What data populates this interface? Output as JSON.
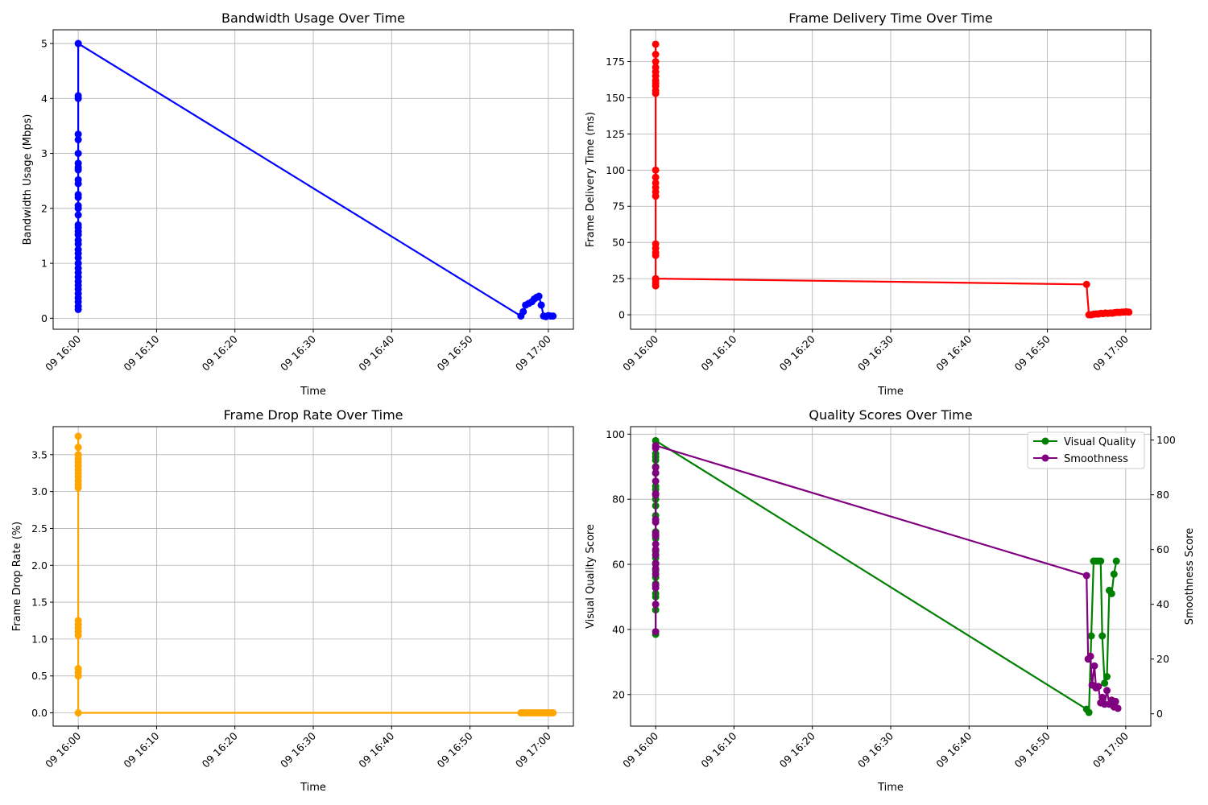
{
  "chart_data": [
    {
      "type": "line",
      "title": "Bandwidth Usage Over Time",
      "xlabel": "Time",
      "ylabel": "Bandwidth Usage (Mbps)",
      "x_ticks": [
        "09 16:00",
        "09 16:10",
        "09 16:20",
        "09 16:30",
        "09 16:40",
        "09 16:50",
        "09 17:00"
      ],
      "y_ticks": [
        0,
        1,
        2,
        3,
        4,
        5
      ],
      "ylim": [
        -0.2,
        5.25
      ],
      "xlim_minutes": [
        -3.2,
        63.2
      ],
      "grid": true,
      "series": [
        {
          "color": "#0000ff",
          "points": [
            [
              0,
              0.16
            ],
            [
              0,
              0.22
            ],
            [
              0,
              0.3
            ],
            [
              0,
              0.37
            ],
            [
              0,
              0.45
            ],
            [
              0,
              0.53
            ],
            [
              0,
              0.6
            ],
            [
              0,
              0.67
            ],
            [
              0,
              0.75
            ],
            [
              0,
              0.83
            ],
            [
              0,
              0.91
            ],
            [
              0,
              1.0
            ],
            [
              0,
              1.1
            ],
            [
              0,
              1.18
            ],
            [
              0,
              1.25
            ],
            [
              0,
              1.35
            ],
            [
              0,
              1.42
            ],
            [
              0,
              1.52
            ],
            [
              0,
              1.58
            ],
            [
              0,
              1.65
            ],
            [
              0,
              1.7
            ],
            [
              0,
              1.88
            ],
            [
              0,
              2.0
            ],
            [
              0,
              2.05
            ],
            [
              0,
              2.2
            ],
            [
              0,
              2.25
            ],
            [
              0,
              2.45
            ],
            [
              0,
              2.52
            ],
            [
              0,
              2.7
            ],
            [
              0,
              2.75
            ],
            [
              0,
              2.82
            ],
            [
              0,
              3.0
            ],
            [
              0,
              3.25
            ],
            [
              0,
              3.35
            ],
            [
              0,
              4.0
            ],
            [
              0,
              4.05
            ],
            [
              0,
              5.0
            ],
            [
              56.5,
              0.04
            ],
            [
              56.8,
              0.12
            ],
            [
              57.1,
              0.24
            ],
            [
              57.5,
              0.27
            ],
            [
              57.9,
              0.3
            ],
            [
              58.2,
              0.35
            ],
            [
              58.5,
              0.38
            ],
            [
              58.8,
              0.4
            ],
            [
              59.1,
              0.24
            ],
            [
              59.4,
              0.04
            ],
            [
              59.7,
              0.03
            ],
            [
              60.0,
              0.05
            ],
            [
              60.3,
              0.04
            ],
            [
              60.6,
              0.04
            ]
          ]
        }
      ]
    },
    {
      "type": "line",
      "title": "Frame Delivery Time Over Time",
      "xlabel": "Time",
      "ylabel": "Frame Delivery Time (ms)",
      "x_ticks": [
        "09 16:00",
        "09 16:10",
        "09 16:20",
        "09 16:30",
        "09 16:40",
        "09 16:50",
        "09 17:00"
      ],
      "y_ticks": [
        0,
        25,
        50,
        75,
        100,
        125,
        150,
        175
      ],
      "ylim": [
        -10,
        197
      ],
      "xlim_minutes": [
        -3.2,
        63.2
      ],
      "grid": true,
      "series": [
        {
          "color": "#ff0000",
          "points": [
            [
              0,
              187
            ],
            [
              0,
              180
            ],
            [
              0,
              175
            ],
            [
              0,
              171
            ],
            [
              0,
              168
            ],
            [
              0,
              165
            ],
            [
              0,
              162
            ],
            [
              0,
              160
            ],
            [
              0,
              158
            ],
            [
              0,
              155
            ],
            [
              0,
              153
            ],
            [
              0,
              100
            ],
            [
              0,
              95
            ],
            [
              0,
              91
            ],
            [
              0,
              88
            ],
            [
              0,
              85
            ],
            [
              0,
              82
            ],
            [
              0,
              49
            ],
            [
              0,
              46
            ],
            [
              0,
              43
            ],
            [
              0,
              41
            ],
            [
              0,
              24
            ],
            [
              0,
              22
            ],
            [
              0,
              20
            ],
            [
              0,
              25
            ],
            [
              55.0,
              21
            ],
            [
              55.3,
              0
            ],
            [
              55.6,
              0
            ],
            [
              55.9,
              0.4
            ],
            [
              56.2,
              0.6
            ],
            [
              56.5,
              0.5
            ],
            [
              56.8,
              1.0
            ],
            [
              57.1,
              0.8
            ],
            [
              57.4,
              1.2
            ],
            [
              57.7,
              1.0
            ],
            [
              58.0,
              1.2
            ],
            [
              58.3,
              1.1
            ],
            [
              58.6,
              1.5
            ],
            [
              58.9,
              1.7
            ],
            [
              59.2,
              1.6
            ],
            [
              59.5,
              1.8
            ],
            [
              59.8,
              1.9
            ],
            [
              60.1,
              2.0
            ],
            [
              60.4,
              1.8
            ]
          ]
        }
      ]
    },
    {
      "type": "line",
      "title": "Frame Drop Rate Over Time",
      "xlabel": "Time",
      "ylabel": "Frame Drop Rate (%)",
      "x_ticks": [
        "09 16:00",
        "09 16:10",
        "09 16:20",
        "09 16:30",
        "09 16:40",
        "09 16:50",
        "09 17:00"
      ],
      "y_ticks": [
        0.0,
        0.5,
        1.0,
        1.5,
        2.0,
        2.5,
        3.0,
        3.5
      ],
      "ylim": [
        -0.18,
        3.88
      ],
      "xlim_minutes": [
        -3.2,
        63.2
      ],
      "grid": true,
      "series": [
        {
          "color": "#ffa500",
          "points": [
            [
              0,
              3.75
            ],
            [
              0,
              3.6
            ],
            [
              0,
              3.5
            ],
            [
              0,
              3.45
            ],
            [
              0,
              3.4
            ],
            [
              0,
              3.35
            ],
            [
              0,
              3.3
            ],
            [
              0,
              3.25
            ],
            [
              0,
              3.2
            ],
            [
              0,
              3.15
            ],
            [
              0,
              3.1
            ],
            [
              0,
              3.05
            ],
            [
              0,
              1.25
            ],
            [
              0,
              1.2
            ],
            [
              0,
              1.15
            ],
            [
              0,
              1.1
            ],
            [
              0,
              1.05
            ],
            [
              0,
              0.6
            ],
            [
              0,
              0.55
            ],
            [
              0,
              0.5
            ],
            [
              0,
              0.0
            ],
            [
              56.5,
              0
            ],
            [
              56.8,
              0
            ],
            [
              57.1,
              0
            ],
            [
              57.4,
              0
            ],
            [
              57.7,
              0
            ],
            [
              58.0,
              0
            ],
            [
              58.3,
              0
            ],
            [
              58.6,
              0
            ],
            [
              58.9,
              0
            ],
            [
              59.2,
              0
            ],
            [
              59.5,
              0
            ],
            [
              59.8,
              0
            ],
            [
              60.1,
              0
            ],
            [
              60.4,
              0
            ],
            [
              60.6,
              0
            ]
          ]
        }
      ]
    },
    {
      "type": "line",
      "title": "Quality Scores Over Time",
      "xlabel": "Time",
      "ylabel": "Visual Quality Score",
      "y2label": "Smoothness Score",
      "x_ticks": [
        "09 16:00",
        "09 16:10",
        "09 16:20",
        "09 16:30",
        "09 16:40",
        "09 16:50",
        "09 17:00"
      ],
      "y_ticks": [
        20,
        40,
        60,
        80,
        100
      ],
      "y2_ticks": [
        0,
        20,
        40,
        60,
        80,
        100
      ],
      "ylim": [
        10.3,
        102.3
      ],
      "y2lim": [
        -4.5,
        104.9
      ],
      "xlim_minutes": [
        -3.2,
        63.2
      ],
      "grid": true,
      "legend": "upper right",
      "series": [
        {
          "name": "Visual Quality",
          "axis": "left",
          "color": "#008000",
          "points": [
            [
              0,
              38.5
            ],
            [
              0,
              46
            ],
            [
              0,
              50
            ],
            [
              0,
              51
            ],
            [
              0,
              54
            ],
            [
              0,
              56
            ],
            [
              0,
              58
            ],
            [
              0,
              60
            ],
            [
              0,
              62
            ],
            [
              0,
              63
            ],
            [
              0,
              64
            ],
            [
              0,
              68
            ],
            [
              0,
              69
            ],
            [
              0,
              70
            ],
            [
              0,
              75
            ],
            [
              0,
              78
            ],
            [
              0,
              80
            ],
            [
              0,
              83
            ],
            [
              0,
              84
            ],
            [
              0,
              88
            ],
            [
              0,
              90
            ],
            [
              0,
              92
            ],
            [
              0,
              93
            ],
            [
              0,
              94
            ],
            [
              0,
              98
            ],
            [
              55.0,
              15.5
            ],
            [
              55.3,
              14.5
            ],
            [
              55.6,
              38
            ],
            [
              55.9,
              61
            ],
            [
              56.2,
              61
            ],
            [
              56.5,
              61
            ],
            [
              56.8,
              61
            ],
            [
              57.0,
              38
            ],
            [
              57.3,
              23.5
            ],
            [
              57.6,
              25.5
            ],
            [
              57.9,
              52
            ],
            [
              58.2,
              51
            ],
            [
              58.5,
              57
            ],
            [
              58.8,
              61
            ]
          ]
        },
        {
          "name": "Smoothness",
          "axis": "right",
          "color": "#800080",
          "points": [
            [
              0,
              30
            ],
            [
              0,
              40
            ],
            [
              0,
              46
            ],
            [
              0,
              47
            ],
            [
              0,
              51
            ],
            [
              0,
              53
            ],
            [
              0,
              55
            ],
            [
              0,
              58
            ],
            [
              0,
              60
            ],
            [
              0,
              62
            ],
            [
              0,
              65
            ],
            [
              0,
              66
            ],
            [
              0,
              70
            ],
            [
              0,
              71
            ],
            [
              0,
              80
            ],
            [
              0,
              80.5
            ],
            [
              0,
              85
            ],
            [
              0,
              88
            ],
            [
              0,
              90
            ],
            [
              0,
              97
            ],
            [
              0,
              98
            ],
            [
              55.0,
              50.5
            ],
            [
              55.2,
              20
            ],
            [
              55.5,
              21
            ],
            [
              55.7,
              10.5
            ],
            [
              56.0,
              17.5
            ],
            [
              56.2,
              9.5
            ],
            [
              56.5,
              10
            ],
            [
              56.8,
              4
            ],
            [
              57.0,
              6
            ],
            [
              57.3,
              3.5
            ],
            [
              57.6,
              8.5
            ],
            [
              57.9,
              3.5
            ],
            [
              58.2,
              5
            ],
            [
              58.5,
              2.5
            ],
            [
              58.7,
              4.5
            ],
            [
              59.0,
              2
            ]
          ]
        }
      ]
    }
  ]
}
